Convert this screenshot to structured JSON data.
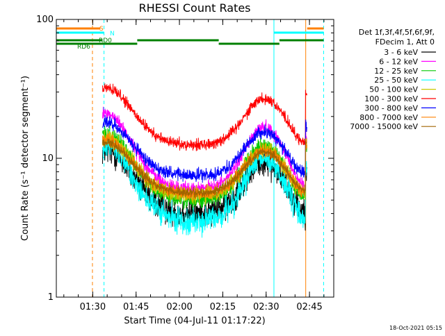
{
  "chart_data": {
    "type": "line",
    "title": "RHESSI Count Rates",
    "xlabel": "Start Time (04-Jul-11 01:17:22)",
    "ylabel": "Count Rate (s⁻¹ detector segment⁻¹)",
    "yscale": "log",
    "ylim": [
      1,
      100
    ],
    "xlim": [
      0,
      96
    ],
    "x_units": "minutes after 01:17:22",
    "xticks": [
      {
        "t": 12.6,
        "label": "01:30"
      },
      {
        "t": 27.6,
        "label": "01:45"
      },
      {
        "t": 42.6,
        "label": "02:00"
      },
      {
        "t": 57.6,
        "label": "02:15"
      },
      {
        "t": 72.6,
        "label": "02:30"
      },
      {
        "t": 87.6,
        "label": "02:45"
      }
    ],
    "yticks": [
      {
        "v": 1,
        "label": "1"
      },
      {
        "v": 10,
        "label": "10"
      },
      {
        "v": 100,
        "label": "100"
      }
    ],
    "data_start": 16,
    "data_end": 86.7,
    "series": [
      {
        "name": "3 - 6 keV",
        "color": "#000000",
        "base": 11.5,
        "low": 4.0,
        "noise": 0.16
      },
      {
        "name": "6 - 12 keV",
        "color": "#ff00ff",
        "base": 21,
        "low": 6.0,
        "noise": 0.07
      },
      {
        "name": "12 - 25 keV",
        "color": "#00c800",
        "base": 15,
        "low": 5.0,
        "noise": 0.09
      },
      {
        "name": "25 - 50 keV",
        "color": "#00ffff",
        "base": 12.5,
        "low": 3.5,
        "noise": 0.14
      },
      {
        "name": "50 - 100 keV",
        "color": "#c8c800",
        "base": 14,
        "low": 5.4,
        "noise": 0.09
      },
      {
        "name": "100 - 300 keV",
        "color": "#ff0000",
        "base": 32,
        "low": 12.5,
        "noise": 0.06
      },
      {
        "name": "300 - 800 keV",
        "color": "#0000ff",
        "base": 18,
        "low": 7.5,
        "noise": 0.07
      },
      {
        "name": "800 - 7000 keV",
        "color": "#ff8000",
        "base": 13.5,
        "low": 5.5,
        "noise": 0.07
      },
      {
        "name": "7000 - 15000 keV",
        "color": "#a06400",
        "base": 13.0,
        "low": 5.6,
        "noise": 0.05
      }
    ],
    "vertical_markers": [
      {
        "t": 12.5,
        "color": "#ff8000",
        "style": "dashed"
      },
      {
        "t": 16.5,
        "color": "#00ffff",
        "style": "dashed"
      },
      {
        "t": 0.0,
        "color": "#00ffff",
        "style": "solid"
      },
      {
        "t": 75.3,
        "color": "#00ffff",
        "style": "solid"
      },
      {
        "t": 86.3,
        "color": "#ff8000",
        "style": "solid"
      },
      {
        "t": 92.5,
        "color": "#00ffff",
        "style": "dashed"
      }
    ],
    "flag_bars": [
      {
        "name": "S",
        "label": "S",
        "color": "#ff8000",
        "segments": [
          [
            0,
            15.2
          ],
          [
            86.8,
            92.5
          ]
        ]
      },
      {
        "name": "N",
        "label": "N",
        "color": "#00ffff",
        "segments": [
          [
            0,
            16.5
          ],
          [
            75.3,
            92.5
          ]
        ]
      },
      {
        "name": "RD0",
        "label": "RD0",
        "color": "#008000",
        "segments": [
          [
            0,
            16.0
          ],
          [
            28.0,
            56.2
          ],
          [
            77.2,
            92.5
          ]
        ]
      },
      {
        "name": "RD6",
        "label": "RD6",
        "color": "#008000",
        "segments": [
          [
            0,
            28.0
          ],
          [
            56.2,
            77.2
          ]
        ]
      }
    ],
    "legend_header": [
      "Det 1f,3f,4f,5f,6f,9f,",
      "FDecim 1, Att 0"
    ],
    "legend_position": "right",
    "timestamp": "18-Oct-2021 05:15"
  }
}
